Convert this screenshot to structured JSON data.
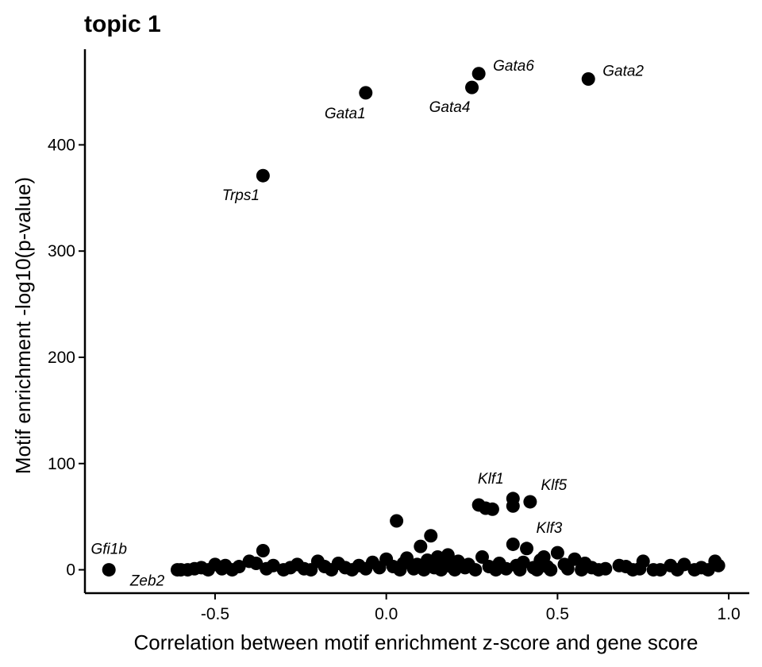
{
  "chart_data": {
    "type": "scatter",
    "title": "topic 1",
    "xlabel": "Correlation between motif enrichment z-score and gene score",
    "ylabel": "Motif enrichment -log10(p-value)",
    "xlim": [
      -0.88,
      1.06
    ],
    "ylim": [
      -22,
      490
    ],
    "xticks": [
      -0.5,
      0.0,
      0.5,
      1.0
    ],
    "xtick_labels": [
      "-0.5",
      "0.0",
      "0.5",
      "1.0"
    ],
    "yticks": [
      0,
      100,
      200,
      300,
      400
    ],
    "ytick_labels": [
      "0",
      "100",
      "200",
      "300",
      "400"
    ],
    "grid": false,
    "labeled_points": [
      {
        "label": "Gata6",
        "x": 0.27,
        "y": 467
      },
      {
        "label": "Gata2",
        "x": 0.59,
        "y": 462
      },
      {
        "label": "Gata1",
        "x": -0.06,
        "y": 449
      },
      {
        "label": "Gata4",
        "x": 0.25,
        "y": 454
      },
      {
        "label": "Trps1",
        "x": -0.36,
        "y": 371
      },
      {
        "label": "Klf1",
        "x": 0.37,
        "y": 67
      },
      {
        "label": "Klf5",
        "x": 0.42,
        "y": 64
      },
      {
        "label": "Klf3",
        "x": 0.41,
        "y": 20
      },
      {
        "label": "Gfi1b",
        "x": -0.81,
        "y": 0
      },
      {
        "label": "Zeb2",
        "x": -0.61,
        "y": 0
      }
    ],
    "points": [
      [
        0.27,
        61
      ],
      [
        0.29,
        58
      ],
      [
        0.31,
        57
      ],
      [
        0.37,
        60
      ],
      [
        0.03,
        46
      ],
      [
        0.13,
        32
      ],
      [
        0.1,
        22
      ],
      [
        0.37,
        24
      ],
      [
        -0.36,
        18
      ],
      [
        0.5,
        16
      ],
      [
        0.18,
        14
      ],
      [
        0.15,
        12
      ],
      [
        -0.4,
        8
      ],
      [
        0.55,
        10
      ],
      [
        0.46,
        12
      ],
      [
        0.75,
        8
      ],
      [
        0.96,
        8
      ],
      [
        -0.47,
        4
      ],
      [
        -0.5,
        5
      ],
      [
        -0.56,
        1
      ],
      [
        -0.58,
        0
      ],
      [
        -0.6,
        0
      ],
      [
        -0.54,
        2
      ],
      [
        -0.52,
        0
      ],
      [
        -0.48,
        1
      ],
      [
        -0.45,
        0
      ],
      [
        -0.43,
        3
      ],
      [
        -0.38,
        6
      ],
      [
        -0.35,
        1
      ],
      [
        -0.33,
        4
      ],
      [
        -0.3,
        0
      ],
      [
        -0.28,
        2
      ],
      [
        -0.26,
        5
      ],
      [
        -0.24,
        1
      ],
      [
        -0.22,
        0
      ],
      [
        -0.2,
        8
      ],
      [
        -0.18,
        3
      ],
      [
        -0.16,
        0
      ],
      [
        -0.14,
        6
      ],
      [
        -0.12,
        2
      ],
      [
        -0.1,
        0
      ],
      [
        -0.08,
        4
      ],
      [
        -0.06,
        1
      ],
      [
        -0.04,
        7
      ],
      [
        -0.02,
        2
      ],
      [
        0.0,
        10
      ],
      [
        0.02,
        3
      ],
      [
        0.04,
        0
      ],
      [
        0.05,
        6
      ],
      [
        0.06,
        11
      ],
      [
        0.08,
        1
      ],
      [
        0.09,
        5
      ],
      [
        0.11,
        0
      ],
      [
        0.12,
        9
      ],
      [
        0.14,
        2
      ],
      [
        0.16,
        0
      ],
      [
        0.17,
        6
      ],
      [
        0.19,
        3
      ],
      [
        0.2,
        0
      ],
      [
        0.21,
        8
      ],
      [
        0.23,
        2
      ],
      [
        0.24,
        5
      ],
      [
        0.26,
        0
      ],
      [
        0.28,
        12
      ],
      [
        0.3,
        3
      ],
      [
        0.32,
        0
      ],
      [
        0.33,
        6
      ],
      [
        0.35,
        1
      ],
      [
        0.38,
        4
      ],
      [
        0.39,
        0
      ],
      [
        0.4,
        7
      ],
      [
        0.43,
        2
      ],
      [
        0.44,
        0
      ],
      [
        0.45,
        9
      ],
      [
        0.47,
        3
      ],
      [
        0.48,
        0
      ],
      [
        0.52,
        5
      ],
      [
        0.53,
        1
      ],
      [
        0.57,
        0
      ],
      [
        0.58,
        6
      ],
      [
        0.6,
        2
      ],
      [
        0.62,
        0
      ],
      [
        0.64,
        1
      ],
      [
        0.68,
        4
      ],
      [
        0.7,
        3
      ],
      [
        0.72,
        0
      ],
      [
        0.74,
        1
      ],
      [
        0.78,
        0
      ],
      [
        0.8,
        0
      ],
      [
        0.83,
        4
      ],
      [
        0.85,
        0
      ],
      [
        0.87,
        5
      ],
      [
        0.9,
        0
      ],
      [
        0.92,
        2
      ],
      [
        0.94,
        0
      ],
      [
        0.97,
        4
      ]
    ]
  }
}
